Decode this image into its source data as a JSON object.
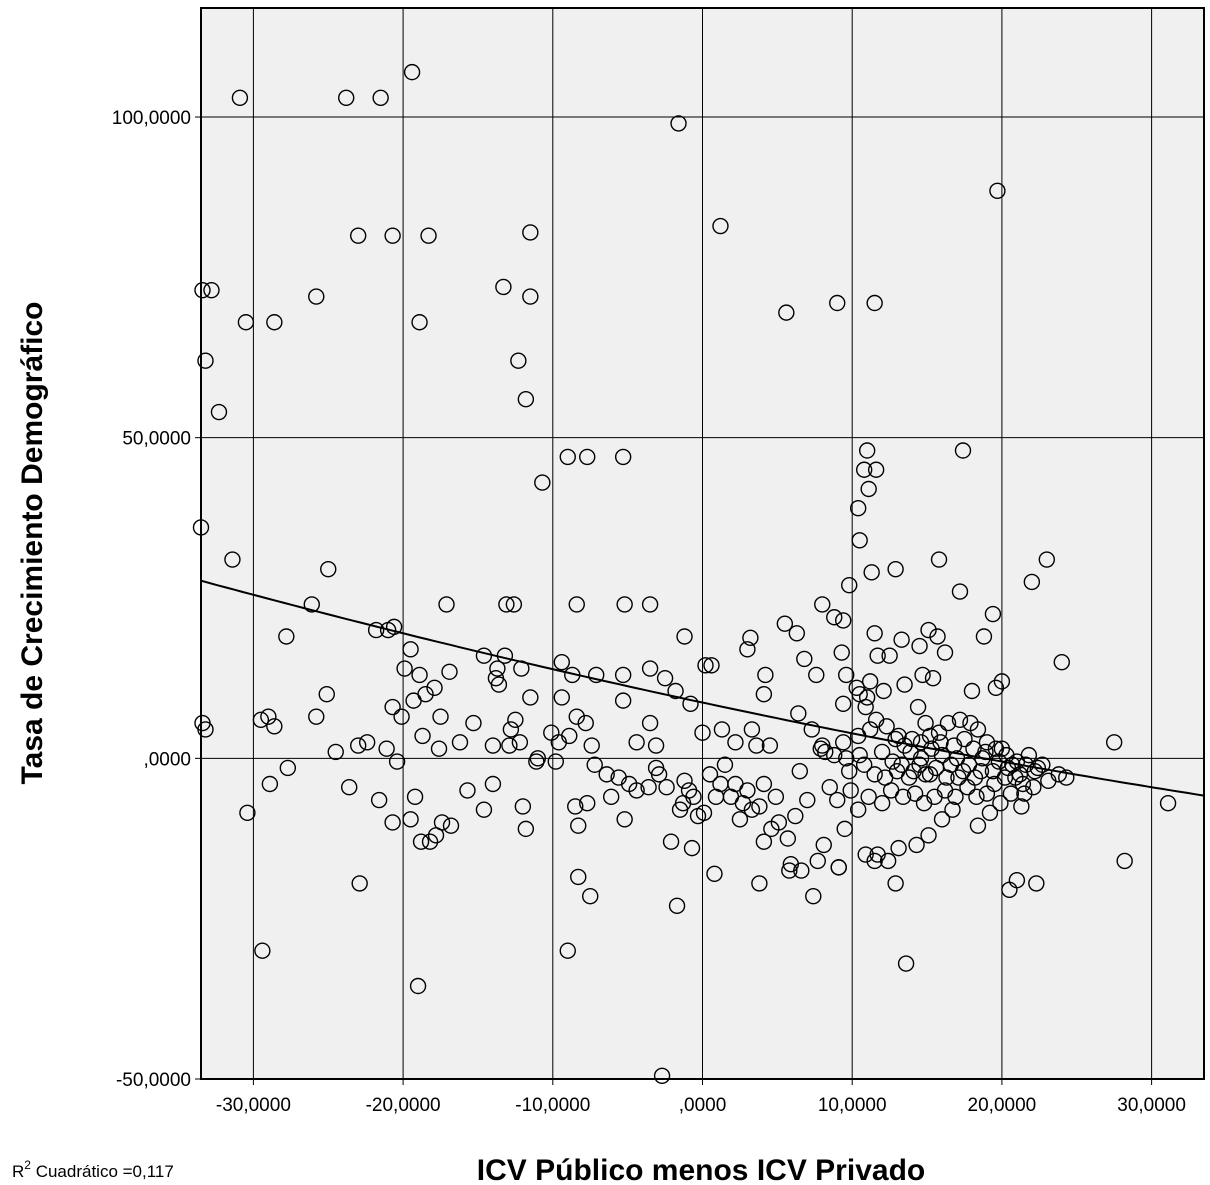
{
  "chart_data": {
    "type": "scatter",
    "title": "",
    "xlabel": "ICV Público menos ICV Privado",
    "ylabel": "Tasa de Crecimiento Demográfico",
    "xlim": [
      -33.5,
      33.5
    ],
    "ylim": [
      -50,
      117
    ],
    "x_ticks": [
      -30,
      -20,
      -10,
      0,
      10,
      20,
      30
    ],
    "x_tick_labels": [
      "-30,0000",
      "-20,0000",
      "-10,0000",
      ",0000",
      "10,0000",
      "20,0000",
      "30,0000"
    ],
    "y_ticks": [
      -50,
      0,
      50,
      100
    ],
    "y_tick_labels": [
      "-50,0000",
      ",0000",
      "50,0000",
      "100,0000"
    ],
    "grid": true,
    "background": "#f0f0f0",
    "marker": "open-circle",
    "fit": {
      "label_prefix": "R",
      "label_sup": "2",
      "label_rest": " Cuadrático =0,117",
      "type": "quadratic",
      "coefficients": [
        8.7,
        -0.5,
        0.002
      ]
    },
    "points": [
      [
        -30.9,
        103
      ],
      [
        -23.8,
        103
      ],
      [
        -21.5,
        103
      ],
      [
        -19.4,
        107
      ],
      [
        -1.6,
        99
      ],
      [
        19.7,
        88.5
      ],
      [
        -23,
        81.5
      ],
      [
        -20.7,
        81.5
      ],
      [
        -18.3,
        81.5
      ],
      [
        -11.5,
        82
      ],
      [
        1.2,
        83
      ],
      [
        -33.4,
        73
      ],
      [
        -32.8,
        73
      ],
      [
        -25.8,
        72
      ],
      [
        -11.5,
        72
      ],
      [
        -13.3,
        73.5
      ],
      [
        9,
        71
      ],
      [
        11.5,
        71
      ],
      [
        -30.5,
        68
      ],
      [
        -28.6,
        68
      ],
      [
        -18.9,
        68
      ],
      [
        5.6,
        69.5
      ],
      [
        -33.2,
        62
      ],
      [
        -12.3,
        62
      ],
      [
        -32.3,
        54
      ],
      [
        -11.8,
        56
      ],
      [
        -9,
        47
      ],
      [
        -7.7,
        47
      ],
      [
        -5.3,
        47
      ],
      [
        -10.7,
        43
      ],
      [
        11,
        48
      ],
      [
        17.4,
        48
      ],
      [
        10.8,
        45
      ],
      [
        11.6,
        45
      ],
      [
        11.1,
        42
      ],
      [
        10.4,
        39
      ],
      [
        10.5,
        34
      ],
      [
        -31.4,
        31
      ],
      [
        -25,
        29.5
      ],
      [
        -26.1,
        24
      ],
      [
        -17.1,
        24
      ],
      [
        -13.1,
        24
      ],
      [
        -12.6,
        24
      ],
      [
        -8.4,
        24
      ],
      [
        -5.2,
        24
      ],
      [
        -3.5,
        24
      ],
      [
        8,
        24
      ],
      [
        8.8,
        22
      ],
      [
        9.4,
        21.5
      ],
      [
        11.3,
        29
      ],
      [
        12.9,
        29.5
      ],
      [
        15.8,
        31
      ],
      [
        17.2,
        26
      ],
      [
        19.4,
        22.5
      ],
      [
        22,
        27.5
      ],
      [
        23,
        31
      ],
      [
        24,
        15
      ],
      [
        9.8,
        27
      ],
      [
        -27.8,
        19
      ],
      [
        -21.8,
        20
      ],
      [
        -21,
        20
      ],
      [
        -20.6,
        20.5
      ],
      [
        -19.5,
        17
      ],
      [
        -16.9,
        13.5
      ],
      [
        -14.6,
        16
      ],
      [
        -13.7,
        14
      ],
      [
        -13.8,
        12.5
      ],
      [
        -13.6,
        11.5
      ],
      [
        -13.2,
        16
      ],
      [
        -12.1,
        14
      ],
      [
        -9.4,
        15
      ],
      [
        -8.7,
        13
      ],
      [
        -7.1,
        13
      ],
      [
        -5.3,
        13
      ],
      [
        -3.5,
        14
      ],
      [
        -2.5,
        12.5
      ],
      [
        -1.8,
        10.5
      ],
      [
        -1.2,
        19
      ],
      [
        0.2,
        14.5
      ],
      [
        0.6,
        14.5
      ],
      [
        3,
        17
      ],
      [
        3.2,
        18.8
      ],
      [
        4.2,
        13
      ],
      [
        4.1,
        10
      ],
      [
        5.5,
        21
      ],
      [
        6.3,
        19.5
      ],
      [
        6.8,
        15.5
      ],
      [
        7.6,
        13
      ],
      [
        9.3,
        16.5
      ],
      [
        9.6,
        13
      ],
      [
        10.3,
        11
      ],
      [
        10.5,
        10
      ],
      [
        11.5,
        19.5
      ],
      [
        11.7,
        16
      ],
      [
        12.5,
        16
      ],
      [
        13.3,
        18.5
      ],
      [
        14.5,
        17.5
      ],
      [
        15.1,
        20
      ],
      [
        15.7,
        19
      ],
      [
        16.2,
        16.5
      ],
      [
        18.8,
        19
      ],
      [
        18,
        10.5
      ],
      [
        19.6,
        11
      ],
      [
        20,
        12
      ],
      [
        13.5,
        11.5
      ],
      [
        14.7,
        13
      ],
      [
        15.4,
        12.5
      ],
      [
        12.1,
        10.5
      ],
      [
        11,
        9.5
      ],
      [
        9.4,
        8.5
      ],
      [
        -29.5,
        6
      ],
      [
        -29,
        6.5
      ],
      [
        -28.6,
        5
      ],
      [
        -25.8,
        6.5
      ],
      [
        -25.1,
        10
      ],
      [
        -23,
        2
      ],
      [
        -20.7,
        8
      ],
      [
        -20.1,
        6.5
      ],
      [
        -19.9,
        14
      ],
      [
        -19.3,
        9
      ],
      [
        -18.9,
        13
      ],
      [
        -18.5,
        10
      ],
      [
        -17.9,
        11
      ],
      [
        -17.5,
        6.5
      ],
      [
        -14,
        2
      ],
      [
        -12.8,
        4.5
      ],
      [
        -12.5,
        6
      ],
      [
        -12.2,
        2.5
      ],
      [
        -11.5,
        9.5
      ],
      [
        -10.1,
        4
      ],
      [
        -9.4,
        9.5
      ],
      [
        -8.4,
        6.5
      ],
      [
        -7.8,
        5.5
      ],
      [
        -7.4,
        2
      ],
      [
        -5.3,
        9
      ],
      [
        -4.4,
        2.5
      ],
      [
        -3.5,
        5.5
      ],
      [
        -3.1,
        2
      ],
      [
        -0.8,
        8.5
      ],
      [
        0,
        4
      ],
      [
        1.3,
        4.5
      ],
      [
        2.2,
        2.5
      ],
      [
        3.3,
        4.5
      ],
      [
        3.6,
        2
      ],
      [
        4.5,
        2
      ],
      [
        6.4,
        7
      ],
      [
        7.9,
        1.5
      ],
      [
        9.6,
        0
      ],
      [
        10.5,
        0.5
      ],
      [
        11.2,
        4.5
      ],
      [
        13.1,
        3.5
      ],
      [
        14,
        3
      ],
      [
        14.6,
        2.5
      ],
      [
        15.2,
        3.5
      ],
      [
        15.9,
        2.5
      ],
      [
        16.8,
        2
      ],
      [
        17.5,
        3
      ],
      [
        18.1,
        1.5
      ],
      [
        18.9,
        1
      ],
      [
        19.6,
        1.5
      ],
      [
        20.3,
        0.5
      ],
      [
        21,
        -0.5
      ],
      [
        21.6,
        -1
      ],
      [
        22.4,
        -1.5
      ],
      [
        23.1,
        -3.5
      ],
      [
        24.3,
        -3
      ],
      [
        27.5,
        2.5
      ],
      [
        12.7,
        -0.5
      ],
      [
        13.3,
        -1
      ],
      [
        14.1,
        -2
      ],
      [
        14.9,
        -2.5
      ],
      [
        15.6,
        -1.5
      ],
      [
        16.3,
        -3
      ],
      [
        17.1,
        -3
      ],
      [
        17.8,
        -1
      ],
      [
        18.6,
        -2
      ],
      [
        19.5,
        -4
      ],
      [
        20.2,
        -3
      ],
      [
        20.9,
        -3
      ],
      [
        21.5,
        -5.5
      ],
      [
        22.1,
        -4.5
      ],
      [
        21.3,
        -7.5
      ],
      [
        19.2,
        -8.5
      ],
      [
        18.4,
        -10.5
      ],
      [
        16.7,
        -8
      ],
      [
        16,
        -9.5
      ],
      [
        15.1,
        -12
      ],
      [
        14.3,
        -13.5
      ],
      [
        13.1,
        -14
      ],
      [
        12.4,
        -16
      ],
      [
        11.5,
        -16
      ],
      [
        10.9,
        -15
      ],
      [
        9.5,
        -11
      ],
      [
        9.1,
        -17
      ],
      [
        8.1,
        -13.5
      ],
      [
        7.7,
        -16
      ],
      [
        6.6,
        -17.5
      ],
      [
        5.9,
        -16.5
      ],
      [
        5.7,
        -12.5
      ],
      [
        4.9,
        -6
      ],
      [
        4.1,
        -4
      ],
      [
        3.3,
        -8
      ],
      [
        2.7,
        -7
      ],
      [
        2.2,
        -4
      ],
      [
        1.5,
        -1
      ],
      [
        0.9,
        -6
      ],
      [
        0.1,
        -8.5
      ],
      [
        -0.6,
        -6
      ],
      [
        -1.2,
        -3.5
      ],
      [
        -1.5,
        -8
      ],
      [
        -2.1,
        -13
      ],
      [
        -2.4,
        -4.5
      ],
      [
        -3.1,
        -1.5
      ],
      [
        -4.4,
        -5
      ],
      [
        -5.2,
        -9.5
      ],
      [
        -5.6,
        -3
      ],
      [
        -6.4,
        -2.5
      ],
      [
        -7.7,
        -7
      ],
      [
        -8.3,
        -10.5
      ],
      [
        -8.5,
        -7.5
      ],
      [
        -9.8,
        -0.5
      ],
      [
        -11.1,
        -0.5
      ],
      [
        -11.8,
        -11
      ],
      [
        -12,
        -7.5
      ],
      [
        -14,
        -4
      ],
      [
        -14.6,
        -8
      ],
      [
        -15.7,
        -5
      ],
      [
        -16.8,
        -10.5
      ],
      [
        -17.4,
        -10
      ],
      [
        -17.8,
        -12
      ],
      [
        -18.2,
        -13
      ],
      [
        -18.8,
        -13
      ],
      [
        -19.2,
        -6
      ],
      [
        -19.5,
        -9.5
      ],
      [
        -20.4,
        -0.5
      ],
      [
        -20.7,
        -10
      ],
      [
        -21.6,
        -6.5
      ],
      [
        -23.6,
        -4.5
      ],
      [
        -27.7,
        -1.5
      ],
      [
        -28.9,
        -4
      ],
      [
        -30.4,
        -8.5
      ],
      [
        -22.9,
        -19.5
      ],
      [
        -29.4,
        -30
      ],
      [
        -19,
        -35.5
      ],
      [
        -8.3,
        -18.5
      ],
      [
        -7.5,
        -21.5
      ],
      [
        -9,
        -30
      ],
      [
        -1.7,
        -23
      ],
      [
        0.8,
        -18
      ],
      [
        -0.7,
        -14
      ],
      [
        3.8,
        -19.5
      ],
      [
        4.1,
        -13
      ],
      [
        5.8,
        -17.5
      ],
      [
        7.4,
        -21.5
      ],
      [
        9.1,
        -17
      ],
      [
        11.7,
        -15
      ],
      [
        12.9,
        -19.5
      ],
      [
        13.6,
        -32
      ],
      [
        20.5,
        -20.5
      ],
      [
        21,
        -19
      ],
      [
        22.3,
        -19.5
      ],
      [
        28.2,
        -16
      ],
      [
        31.1,
        -7
      ],
      [
        -2.7,
        -49.5
      ],
      [
        -33.5,
        36
      ],
      [
        -33.4,
        5.5
      ],
      [
        -33.2,
        4.5
      ],
      [
        7.3,
        4.5
      ],
      [
        8.2,
        1
      ],
      [
        8.8,
        0.5
      ],
      [
        9.4,
        2.5
      ],
      [
        10.4,
        3.5
      ],
      [
        10.9,
        8
      ],
      [
        11.2,
        12
      ],
      [
        11.6,
        6
      ],
      [
        12.3,
        5
      ],
      [
        12.9,
        3
      ],
      [
        13.5,
        2
      ],
      [
        14.4,
        8
      ],
      [
        14.9,
        5.5
      ],
      [
        15.8,
        4
      ],
      [
        16.4,
        5.5
      ],
      [
        17.2,
        6
      ],
      [
        17.9,
        5.5
      ],
      [
        18.4,
        4.5
      ],
      [
        19,
        2.5
      ],
      [
        20,
        1.5
      ],
      [
        20.7,
        -1
      ],
      [
        21.8,
        0.5
      ],
      [
        22.2,
        -2
      ],
      [
        23.8,
        -2.5
      ],
      [
        8,
        2
      ],
      [
        8.5,
        -4.5
      ],
      [
        9,
        -6.5
      ],
      [
        9.9,
        -5
      ],
      [
        10.4,
        -8
      ],
      [
        11.1,
        -6
      ],
      [
        12,
        -7
      ],
      [
        12.6,
        -5
      ],
      [
        13.4,
        -6
      ],
      [
        14.2,
        -5.5
      ],
      [
        14.8,
        -7
      ],
      [
        15.5,
        -6
      ],
      [
        16.2,
        -5
      ],
      [
        16.9,
        -6
      ],
      [
        17.7,
        -4.5
      ],
      [
        18.3,
        -6
      ],
      [
        19,
        -5.5
      ],
      [
        19.9,
        -7
      ],
      [
        20.6,
        -5.5
      ],
      [
        21.4,
        -4
      ],
      [
        6.5,
        -2
      ],
      [
        7,
        -6.5
      ],
      [
        6.2,
        -9
      ],
      [
        5.1,
        -10
      ],
      [
        4.6,
        -11
      ],
      [
        3.8,
        -7.5
      ],
      [
        3,
        -5
      ],
      [
        2.5,
        -9.5
      ],
      [
        1.9,
        -6
      ],
      [
        1.2,
        -4
      ],
      [
        0.5,
        -2.5
      ],
      [
        -0.3,
        -9
      ],
      [
        -0.9,
        -5
      ],
      [
        -1.3,
        -7
      ],
      [
        -2.9,
        -2.5
      ],
      [
        -3.6,
        -4.5
      ],
      [
        -4.9,
        -4
      ],
      [
        -6.1,
        -6
      ],
      [
        -7.2,
        -1
      ],
      [
        -8.9,
        3.5
      ],
      [
        -9.6,
        2.5
      ],
      [
        -11,
        0
      ],
      [
        -12.9,
        2
      ],
      [
        -15.3,
        5.5
      ],
      [
        -16.2,
        2.5
      ],
      [
        -17.6,
        1.5
      ],
      [
        -18.7,
        3.5
      ],
      [
        -21.1,
        1.5
      ],
      [
        -22.4,
        2.5
      ],
      [
        -24.5,
        1
      ],
      [
        9.8,
        -2
      ],
      [
        10.8,
        -1
      ],
      [
        11.5,
        -2.5
      ],
      [
        12.2,
        -3
      ],
      [
        13,
        -2
      ],
      [
        13.8,
        -3
      ],
      [
        14.5,
        -1
      ],
      [
        15.2,
        -2.5
      ],
      [
        16.6,
        -1
      ],
      [
        17.4,
        -2
      ],
      [
        18.2,
        -3
      ],
      [
        19.4,
        -2
      ],
      [
        20.4,
        -1.5
      ],
      [
        21.2,
        -2.5
      ],
      [
        22.7,
        -1
      ],
      [
        16,
        0.5
      ],
      [
        15.3,
        1.5
      ],
      [
        14.6,
        0
      ],
      [
        13.9,
        1
      ],
      [
        17,
        0
      ],
      [
        18.7,
        0
      ],
      [
        19.8,
        -0.5
      ],
      [
        12,
        1
      ]
    ]
  }
}
